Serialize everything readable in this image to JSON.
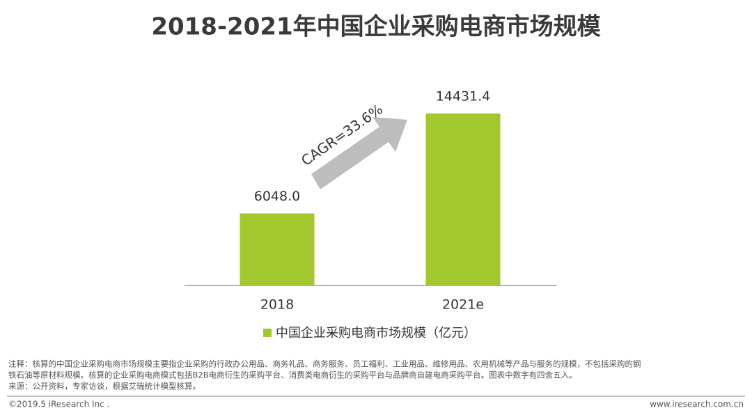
{
  "chart_data": {
    "type": "bar",
    "title": "2018-2021年中国企业采购电商市场规模",
    "categories": [
      "2018",
      "2021e"
    ],
    "series": [
      {
        "name": "中国企业采购电商市场规模（亿元）",
        "color": "#a3c82e",
        "values": [
          6048,
          14431.4
        ],
        "value_labels": [
          "6048.0",
          "14431.4"
        ]
      }
    ],
    "annotation": "CAGR=33.6%"
  },
  "notes": [
    "注释：核算的中国企业采购电商市场规模主要指企业采购的行政办公用品、商务礼品、商务服务、员工福利、工业用品、维修用品、农用机械等产品与服务的规模，不包括采购的钢",
    "铁石油等原材料规模。核算的企业采购电商模式包括B2B电商衍生的采购平台、消费类电商衍生的采购平台与品牌商自建电商采购平台。图表中数字有四舍五入。",
    "来源：公开资料，专家访谈，根据艾瑞统计模型核算。"
  ],
  "footer": {
    "left": "©2019.5 iResearch Inc .",
    "right": "www.iresearch.com.cn"
  }
}
